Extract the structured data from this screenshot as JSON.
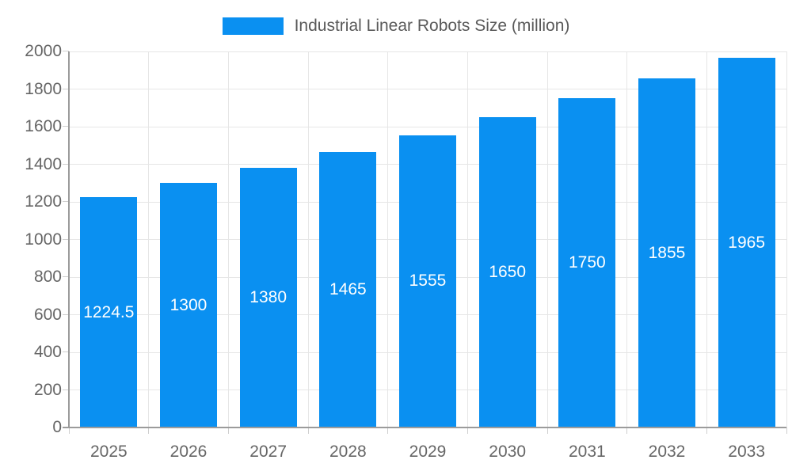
{
  "page": {
    "background": "#ffffff"
  },
  "legend": {
    "label": "Industrial Linear Robots Size (million)"
  },
  "chart_data": {
    "type": "bar",
    "title": "Industrial Linear Robots Size (million)",
    "series_name": "Industrial Linear Robots Size (million)",
    "categories": [
      "2025",
      "2026",
      "2027",
      "2028",
      "2029",
      "2030",
      "2031",
      "2032",
      "2033"
    ],
    "values": [
      1224.5,
      1300,
      1380,
      1465,
      1555,
      1650,
      1750,
      1855,
      1965
    ],
    "value_labels": [
      "1224.5",
      "1300",
      "1380",
      "1465",
      "1555",
      "1650",
      "1750",
      "1855",
      "1965"
    ],
    "xlabel": "",
    "ylabel": "",
    "ylim": [
      0,
      2000
    ],
    "ytick_step": 200,
    "yticks": [
      0,
      200,
      400,
      600,
      800,
      1000,
      1200,
      1400,
      1600,
      1800,
      2000
    ],
    "grid": true,
    "legend_position": "top-center",
    "colors": {
      "bar": "#0a90f1",
      "grid": "#e6e6e6",
      "axis": "#9b9b9b",
      "tick": "#cfcfcf",
      "tick_label": "#666666",
      "legend_text": "#595959",
      "value_label": "#ffffff"
    }
  }
}
